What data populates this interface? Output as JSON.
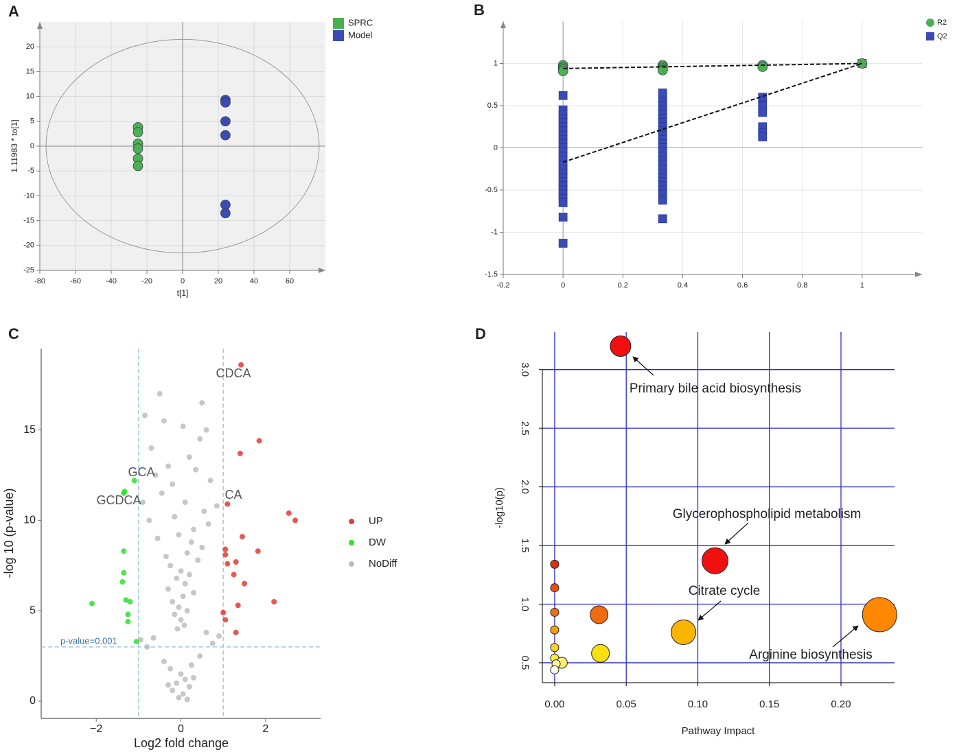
{
  "panels": [
    "A",
    "B",
    "C",
    "D"
  ],
  "chart_data": [
    {
      "type": "scatter",
      "xlabel": "t[1]",
      "ylabel": "1.11983 * to[1]",
      "xlim": [
        -80,
        80
      ],
      "ylim": [
        -25,
        25
      ],
      "xticks": [
        -80,
        -60,
        -40,
        -20,
        0,
        20,
        40,
        60
      ],
      "yticks": [
        -25,
        -20,
        -15,
        -10,
        -5,
        0,
        5,
        10,
        15,
        20
      ],
      "grid": true,
      "legend": "right",
      "ellipse": {
        "rx": 76.5,
        "ry": 21.5
      },
      "series": [
        {
          "name": "SPRC",
          "color": "#4caf50",
          "marker": "circle",
          "x": [
            -25,
            -25,
            -25,
            -25,
            -25,
            -25
          ],
          "values": [
            3.8,
            2.8,
            0.5,
            -0.5,
            -2.5,
            -4
          ]
        },
        {
          "name": "Model",
          "color": "#3a4cb4",
          "marker": "circle",
          "x": [
            24,
            24,
            24,
            24,
            24,
            24
          ],
          "values": [
            9.3,
            8.8,
            5,
            2.2,
            -11.8,
            -13.5
          ]
        }
      ]
    },
    {
      "type": "scatter",
      "xlim": [
        -0.2,
        1.2
      ],
      "ylim": [
        -1.5,
        1.5
      ],
      "xticks": [
        -0.2,
        0,
        0.2,
        0.4,
        0.6,
        0.8,
        1
      ],
      "yticks": [
        -1.5,
        -1,
        -0.5,
        0,
        0.5,
        1
      ],
      "grid": true,
      "legend": "upper right",
      "series": [
        {
          "name": "R2",
          "color": "#4caf50",
          "marker": "circle",
          "x": [
            0,
            0,
            0,
            0,
            0.333,
            0.333,
            0.333,
            0.333,
            0.667,
            0.667,
            1
          ],
          "values": [
            0.98,
            0.95,
            0.93,
            0.91,
            0.98,
            0.96,
            0.94,
            0.92,
            0.98,
            0.96,
            1
          ]
        },
        {
          "name": "Q2",
          "color": "#3a4cb4",
          "marker": "square",
          "x": [
            0,
            0,
            0,
            0,
            0,
            0,
            0,
            0,
            0,
            0,
            0,
            0,
            0,
            0,
            0,
            0,
            0,
            0,
            0,
            0,
            0,
            0,
            0,
            0,
            0,
            0,
            0.333,
            0.333,
            0.333,
            0.333,
            0.333,
            0.333,
            0.333,
            0.333,
            0.333,
            0.333,
            0.333,
            0.333,
            0.333,
            0.333,
            0.333,
            0.333,
            0.333,
            0.333,
            0.333,
            0.333,
            0.333,
            0.333,
            0.333,
            0.333,
            0.333,
            0.333,
            0.667,
            0.667,
            0.667,
            0.667,
            0.667,
            0.667,
            1
          ],
          "values": [
            0.62,
            0.45,
            0.4,
            0.35,
            0.3,
            0.25,
            0.2,
            0.15,
            0.1,
            0.05,
            0,
            -0.05,
            -0.1,
            -0.15,
            -0.2,
            -0.25,
            -0.3,
            -0.35,
            -0.4,
            -0.45,
            -0.5,
            -0.55,
            -0.6,
            -0.65,
            -0.82,
            -1.13,
            0.65,
            0.55,
            0.5,
            0.45,
            0.4,
            0.35,
            0.3,
            0.25,
            0.2,
            0.15,
            0.1,
            0.05,
            0,
            -0.05,
            -0.1,
            -0.15,
            -0.2,
            -0.25,
            -0.3,
            -0.35,
            -0.4,
            -0.45,
            -0.5,
            -0.55,
            -0.62,
            -0.84,
            0.6,
            0.5,
            0.42,
            0.25,
            0.18,
            0.13,
            1
          ]
        }
      ],
      "fit_lines": [
        {
          "x": [
            0,
            1
          ],
          "values": [
            0.94,
            1
          ]
        },
        {
          "x": [
            0,
            1
          ],
          "values": [
            -0.17,
            1
          ]
        }
      ]
    },
    {
      "type": "scatter",
      "xlabel": "Log2 fold change",
      "ylabel": "-log 10 (p-value)",
      "xlim": [
        -3.3,
        3.3
      ],
      "ylim": [
        -0.95,
        19.5
      ],
      "xticks": [
        {
          "value": -2,
          "label": "−2"
        },
        0,
        2
      ],
      "yticks": [
        0,
        5,
        10,
        15
      ],
      "grid": false,
      "legend": "right",
      "thresholds": {
        "x": [
          -1,
          1
        ],
        "y": 3,
        "label": "p-value=0.001"
      },
      "annotations": [
        "CDCA",
        "GCA",
        "GCDCA",
        "CA"
      ],
      "series": [
        {
          "name": "UP",
          "color": "#e53935",
          "marker": "circle",
          "x": [
            1.42,
            1.85,
            1.4,
            2.55,
            2.7,
            1.1,
            1.45,
            1.82,
            1.05,
            1.05,
            1.3,
            1.1,
            1.25,
            1.5,
            2.2,
            1.35,
            1.0,
            1.05,
            1.3
          ],
          "values": [
            18.6,
            14.4,
            13.7,
            10.4,
            10.0,
            10.9,
            9.1,
            8.3,
            8.4,
            8.1,
            7.7,
            7.6,
            7.0,
            6.5,
            5.5,
            5.3,
            4.9,
            4.5,
            3.8
          ]
        },
        {
          "name": "DW",
          "color": "#2fe02f",
          "marker": "circle",
          "x": [
            -1.1,
            -1.33,
            -1.35,
            -1.35,
            -1.35,
            -1.38,
            -2.1,
            -1.3,
            -1.2,
            -1.25,
            -1.25,
            -1.05
          ],
          "values": [
            12.2,
            11.6,
            11.5,
            8.3,
            7.1,
            6.6,
            5.4,
            5.6,
            5.5,
            4.8,
            4.4,
            3.3
          ]
        },
        {
          "name": "NoDiff",
          "color": "#bdbdbd",
          "marker": "circle",
          "x": [
            -0.5,
            -0.85,
            -0.4,
            0.05,
            0.5,
            0.6,
            -0.7,
            -0.3,
            0.2,
            0.45,
            -0.6,
            -0.2,
            0.35,
            0.7,
            -0.9,
            -0.45,
            0.1,
            0.55,
            0.85,
            -0.75,
            -0.15,
            0.3,
            0.65,
            -0.55,
            -0.05,
            0.25,
            0.5,
            -0.35,
            0.15,
            0.4,
            -0.25,
            0.0,
            0.2,
            -0.1,
            0.1,
            -0.3,
            0.3,
            -0.2,
            0.05,
            -0.05,
            0.15,
            -0.15,
            0.0,
            0.08,
            -0.08,
            0.6,
            -0.65,
            0.9,
            -0.95,
            0.75,
            -0.8,
            0.45,
            -0.4,
            0.25,
            -0.25,
            0,
            0.1,
            -0.1,
            0.2,
            -0.2,
            0.05,
            -0.05,
            0.15,
            0.3,
            -0.3
          ],
          "values": [
            17,
            15.8,
            15.5,
            15.2,
            16.5,
            15,
            14,
            13,
            13.5,
            14.5,
            12.5,
            12,
            12.8,
            12.2,
            11,
            11.5,
            11,
            10.5,
            10.8,
            10,
            10.2,
            9.5,
            9.8,
            9,
            9.2,
            8.8,
            8.5,
            8,
            8.2,
            7.8,
            7.5,
            7.2,
            7,
            6.8,
            6.5,
            6.2,
            6,
            5.5,
            5.8,
            5.2,
            5,
            4.8,
            4.5,
            4.2,
            4,
            3.8,
            3.5,
            3.6,
            3.4,
            3.2,
            3,
            2.5,
            2.2,
            2,
            1.8,
            1.5,
            1.2,
            1,
            0.8,
            0.6,
            0.4,
            0.2,
            0.1,
            1.3,
            0.9
          ]
        }
      ]
    },
    {
      "type": "bubble",
      "xlabel": "Pathway Impact",
      "ylabel": "-log10(p)",
      "xlim": [
        -0.0086,
        0.2374
      ],
      "ylim": [
        0.33,
        3.32
      ],
      "xticks": [
        {
          "value": 0,
          "label": "0.00"
        },
        0.05,
        {
          "value": 0.1,
          "label": "0.10"
        },
        0.15,
        {
          "value": 0.2,
          "label": "0.20"
        }
      ],
      "yticks": [
        0.5,
        {
          "value": 1,
          "label": "1.0"
        },
        1.5,
        {
          "value": 2,
          "label": "2.0"
        },
        2.5,
        {
          "value": 3,
          "label": "3.0"
        }
      ],
      "grid": true,
      "grid_color": "#2b2bd0",
      "annotations": [
        "Primary bile acid biosynthesis",
        "Glycerophospholipid  metabolism",
        "Citrate cycle",
        "Arginine biosynthesis"
      ],
      "x": [
        0.046,
        0.112,
        0.227,
        0.09,
        0.031,
        0.032,
        0,
        0,
        0,
        0,
        0,
        0,
        0.005,
        0.001,
        0
      ],
      "values": [
        3.2,
        1.37,
        0.91,
        0.76,
        0.91,
        0.58,
        1.34,
        1.14,
        0.93,
        0.78,
        0.63,
        0.54,
        0.5,
        0.49,
        0.44
      ],
      "sizes": [
        15,
        19,
        25,
        18,
        13,
        13,
        6,
        6,
        6,
        6,
        6,
        6,
        8,
        6,
        6
      ],
      "colors": [
        "#f01010",
        "#f01010",
        "#ff8800",
        "#fbb400",
        "#f06a10",
        "#f8e010",
        "#e03010",
        "#e85010",
        "#f07010",
        "#f5a000",
        "#ffd020",
        "#ffee40",
        "#fff070",
        "#fff6a8",
        "#fffde8"
      ]
    }
  ]
}
